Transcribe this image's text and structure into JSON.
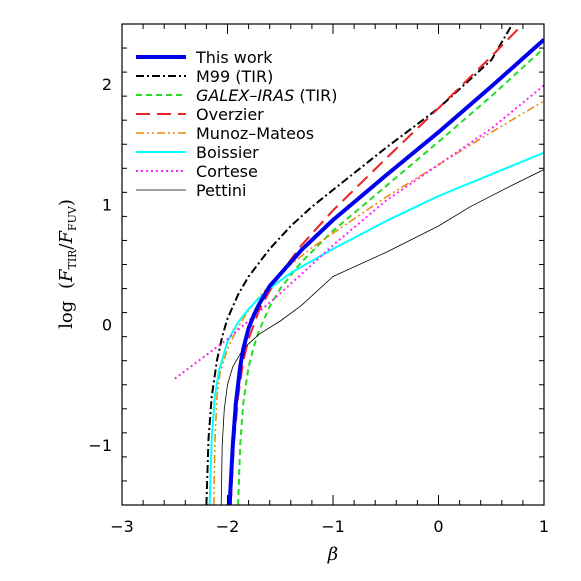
{
  "chart_data": {
    "type": "line",
    "xlabel": "β",
    "ylabel": {
      "prefix": "log",
      "num_var": "F",
      "num_sub": "TIR",
      "den_var": "F",
      "den_sub": "FUV"
    },
    "xlim": [
      -3,
      1
    ],
    "ylim": [
      -1.5,
      2.5
    ],
    "xticks": [
      -3,
      -2,
      -1,
      0,
      1
    ],
    "xtick_labels": [
      "−3",
      "−2",
      "−1",
      "0",
      "1"
    ],
    "yticks": [
      -1,
      0,
      1,
      2
    ],
    "ytick_labels": [
      "−1",
      "0",
      "1",
      "2"
    ],
    "legend_position": "top-left",
    "series": [
      {
        "name": "This work",
        "color": "#0000ee",
        "dash": "solid",
        "width": 4,
        "x": [
          -1.98,
          -1.95,
          -1.92,
          -1.88,
          -1.85,
          -1.8,
          -1.75,
          -1.7,
          -1.6,
          -1.5,
          -1.3,
          -1.0,
          -0.5,
          0.0,
          0.5,
          1.0
        ],
        "y": [
          -1.5,
          -1.0,
          -0.65,
          -0.35,
          -0.2,
          -0.03,
          0.08,
          0.17,
          0.32,
          0.42,
          0.62,
          0.87,
          1.24,
          1.6,
          1.98,
          2.37
        ]
      },
      {
        "name": "M99 (TIR)",
        "color": "#000000",
        "dash": "dashdot",
        "width": 2,
        "x": [
          -2.2,
          -2.18,
          -2.15,
          -2.1,
          -2.05,
          -2.0,
          -1.9,
          -1.8,
          -1.6,
          -1.4,
          -1.2,
          -1.0,
          -0.5,
          0.0,
          0.5,
          0.7
        ],
        "y": [
          -1.5,
          -0.95,
          -0.6,
          -0.3,
          -0.1,
          0.05,
          0.25,
          0.4,
          0.63,
          0.82,
          0.98,
          1.12,
          1.47,
          1.8,
          2.2,
          2.5
        ]
      },
      {
        "name": "GALEX–IRAS (TIR)",
        "color": "#22dd22",
        "dash": "dashed",
        "width": 2,
        "x": [
          -1.9,
          -1.88,
          -1.85,
          -1.8,
          -1.75,
          -1.7,
          -1.6,
          -1.5,
          -1.3,
          -1.0,
          -0.5,
          0.0,
          0.5,
          1.0
        ],
        "y": [
          -1.5,
          -1.0,
          -0.65,
          -0.35,
          -0.18,
          -0.05,
          0.15,
          0.3,
          0.52,
          0.78,
          1.15,
          1.52,
          1.9,
          2.3
        ]
      },
      {
        "name": "Overzier",
        "color": "#ee2222",
        "dash": "longdash",
        "width": 2,
        "x": [
          -1.97,
          -1.94,
          -1.9,
          -1.85,
          -1.8,
          -1.7,
          -1.6,
          -1.5,
          -1.3,
          -1.0,
          -0.5,
          0.0,
          0.5,
          0.8
        ],
        "y": [
          -1.5,
          -1.0,
          -0.6,
          -0.3,
          -0.12,
          0.12,
          0.28,
          0.42,
          0.66,
          0.95,
          1.38,
          1.8,
          2.23,
          2.5
        ]
      },
      {
        "name": "Munoz–Mateos",
        "color": "#ee8800",
        "dash": "dashdotdot",
        "width": 1.5,
        "x": [
          -2.13,
          -2.12,
          -2.1,
          -2.07,
          -2.0,
          -1.9,
          -1.8,
          -1.7,
          -1.6,
          -1.4,
          -1.2,
          -1.0,
          -0.5,
          0.0,
          0.5,
          1.0
        ],
        "y": [
          -1.5,
          -1.0,
          -0.6,
          -0.4,
          -0.2,
          -0.02,
          0.12,
          0.23,
          0.33,
          0.5,
          0.64,
          0.76,
          1.06,
          1.33,
          1.6,
          1.86
        ]
      },
      {
        "name": "Boissier",
        "color": "#00ffff",
        "dash": "solid",
        "width": 2,
        "x": [
          -2.17,
          -2.15,
          -2.12,
          -2.08,
          -2.0,
          -1.9,
          -1.8,
          -1.7,
          -1.6,
          -1.4,
          -1.2,
          -1.0,
          -0.5,
          0.0,
          0.5,
          1.0
        ],
        "y": [
          -1.5,
          -0.95,
          -0.6,
          -0.38,
          -0.14,
          0.02,
          0.13,
          0.22,
          0.3,
          0.43,
          0.53,
          0.63,
          0.86,
          1.07,
          1.25,
          1.43
        ]
      },
      {
        "name": "Cortese",
        "color": "#ff22ff",
        "dash": "dotted",
        "width": 2,
        "x": [
          -2.5,
          -2.0,
          -1.5,
          -1.0,
          -0.5,
          0.0,
          0.5,
          1.0
        ],
        "y": [
          -0.45,
          -0.12,
          0.26,
          0.66,
          1.03,
          1.33,
          1.63,
          1.99
        ]
      },
      {
        "name": "Pettini",
        "color": "#000000",
        "dash": "solid",
        "width": 0.8,
        "x": [
          -2.06,
          -2.05,
          -2.03,
          -2.0,
          -1.95,
          -1.85,
          -1.7,
          -1.5,
          -1.3,
          -1.0,
          -0.5,
          0.0,
          0.3,
          0.7,
          1.0
        ],
        "y": [
          -1.5,
          -1.0,
          -0.7,
          -0.5,
          -0.35,
          -0.2,
          -0.08,
          0.03,
          0.16,
          0.4,
          0.6,
          0.82,
          0.98,
          1.16,
          1.29
        ]
      }
    ]
  }
}
